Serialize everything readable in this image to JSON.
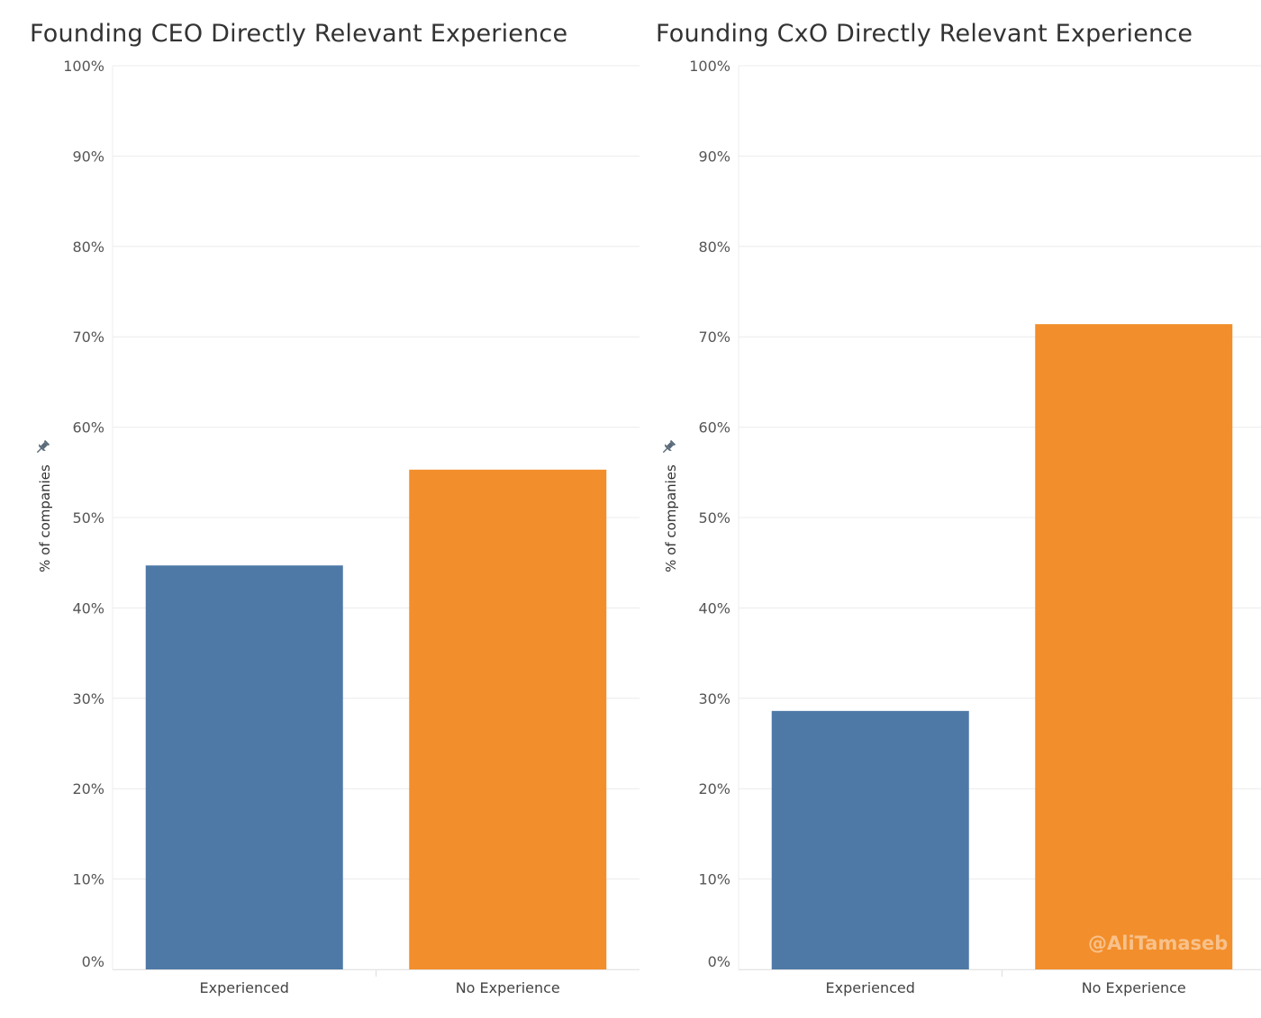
{
  "chart_data": [
    {
      "type": "bar",
      "title": "Founding CEO Directly Relevant Experience",
      "xlabel": "",
      "ylabel": "% of companies",
      "ylim": [
        0,
        100
      ],
      "y_ticks": [
        "0%",
        "10%",
        "20%",
        "30%",
        "40%",
        "50%",
        "60%",
        "70%",
        "80%",
        "90%",
        "100%"
      ],
      "categories": [
        "Experienced",
        "No Experience"
      ],
      "values": [
        44.7,
        55.3
      ],
      "colors": [
        "#4e79a7",
        "#f28e2b"
      ],
      "grid": true,
      "legend": "none"
    },
    {
      "type": "bar",
      "title": "Founding CxO Directly Relevant Experience",
      "xlabel": "",
      "ylabel": "% of companies",
      "ylim": [
        0,
        100
      ],
      "y_ticks": [
        "0%",
        "10%",
        "20%",
        "30%",
        "40%",
        "50%",
        "60%",
        "70%",
        "80%",
        "90%",
        "100%"
      ],
      "categories": [
        "Experienced",
        "No Experience"
      ],
      "values": [
        28.6,
        71.4
      ],
      "colors": [
        "#4e79a7",
        "#f28e2b"
      ],
      "grid": true,
      "legend": "none"
    }
  ],
  "icons": {
    "pin": "pin-icon"
  },
  "watermark": "@AliTamaseb"
}
